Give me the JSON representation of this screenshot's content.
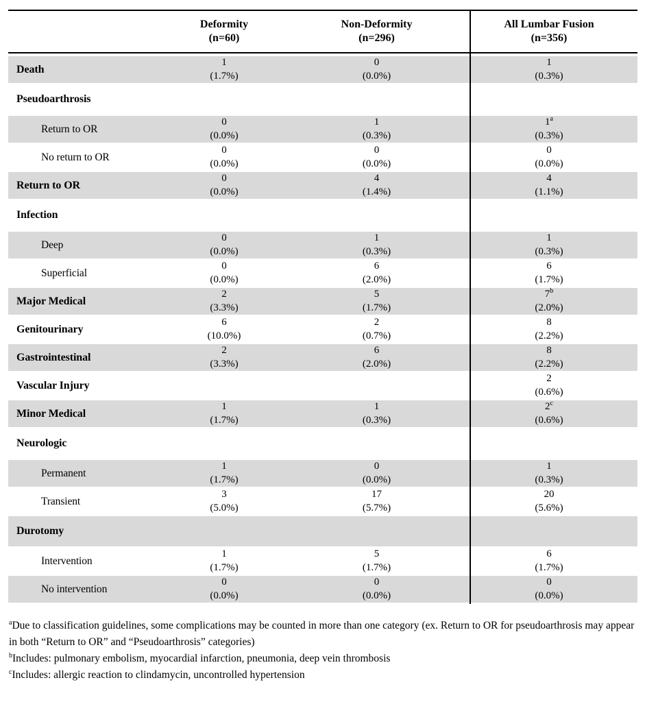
{
  "colors": {
    "shading": "#d9d9d9",
    "border": "#000000",
    "background": "#ffffff"
  },
  "table": {
    "columns": [
      {
        "label": "Deformity",
        "n": "(n=60)"
      },
      {
        "label": "Non-Deformity",
        "n": "(n=296)"
      },
      {
        "label": "All Lumbar Fusion",
        "n": "(n=356)"
      }
    ],
    "rows": [
      {
        "label": "Death",
        "style": "main",
        "shaded": true,
        "cells": [
          {
            "count": "1",
            "pct": "(1.7%)"
          },
          {
            "count": "0",
            "pct": "(0.0%)"
          },
          {
            "count": "1",
            "pct": "(0.3%)"
          }
        ]
      },
      {
        "label": "Pseudoarthrosis",
        "style": "section",
        "shaded": false,
        "cells": [
          null,
          null,
          null
        ]
      },
      {
        "label": "Return to OR",
        "style": "sub",
        "shaded": true,
        "cells": [
          {
            "count": "0",
            "pct": "(0.0%)"
          },
          {
            "count": "1",
            "pct": "(0.3%)"
          },
          {
            "count": "1",
            "sup": "a",
            "pct": "(0.3%)"
          }
        ]
      },
      {
        "label": "No return to OR",
        "style": "sub",
        "shaded": false,
        "cells": [
          {
            "count": "0",
            "pct": "(0.0%)"
          },
          {
            "count": "0",
            "pct": "(0.0%)"
          },
          {
            "count": "0",
            "pct": "(0.0%)"
          }
        ]
      },
      {
        "label": "Return to OR",
        "style": "main",
        "shaded": true,
        "cells": [
          {
            "count": "0",
            "pct": "(0.0%)"
          },
          {
            "count": "4",
            "pct": "(1.4%)"
          },
          {
            "count": "4",
            "pct": "(1.1%)"
          }
        ]
      },
      {
        "label": "Infection",
        "style": "section",
        "shaded": false,
        "cells": [
          null,
          null,
          null
        ]
      },
      {
        "label": "Deep",
        "style": "sub",
        "shaded": true,
        "cells": [
          {
            "count": "0",
            "pct": "(0.0%)"
          },
          {
            "count": "1",
            "pct": "(0.3%)"
          },
          {
            "count": "1",
            "pct": "(0.3%)"
          }
        ]
      },
      {
        "label": "Superficial",
        "style": "sub",
        "shaded": false,
        "cells": [
          {
            "count": "0",
            "pct": "(0.0%)"
          },
          {
            "count": "6",
            "pct": "(2.0%)"
          },
          {
            "count": "6",
            "pct": "(1.7%)"
          }
        ]
      },
      {
        "label": "Major Medical",
        "style": "main",
        "shaded": true,
        "cells": [
          {
            "count": "2",
            "pct": "(3.3%)"
          },
          {
            "count": "5",
            "pct": "(1.7%)"
          },
          {
            "count": "7",
            "sup": "b",
            "pct": "(2.0%)"
          }
        ]
      },
      {
        "label": "Genitourinary",
        "style": "main",
        "shaded": false,
        "cells": [
          {
            "count": "6",
            "pct": "(10.0%)"
          },
          {
            "count": "2",
            "pct": "(0.7%)"
          },
          {
            "count": "8",
            "pct": "(2.2%)"
          }
        ]
      },
      {
        "label": "Gastrointestinal",
        "style": "main",
        "shaded": true,
        "cells": [
          {
            "count": "2",
            "pct": "(3.3%)"
          },
          {
            "count": "6",
            "pct": "(2.0%)"
          },
          {
            "count": "8",
            "pct": "(2.2%)"
          }
        ]
      },
      {
        "label": "Vascular Injury",
        "style": "main",
        "shaded": false,
        "cells": [
          null,
          null,
          {
            "count": "2",
            "pct": "(0.6%)"
          }
        ]
      },
      {
        "label": "Minor Medical",
        "style": "main",
        "shaded": true,
        "cells": [
          {
            "count": "1",
            "pct": "(1.7%)"
          },
          {
            "count": "1",
            "pct": "(0.3%)"
          },
          {
            "count": "2",
            "sup": "c",
            "pct": "(0.6%)"
          }
        ]
      },
      {
        "label": "Neurologic",
        "style": "section",
        "shaded": false,
        "cells": [
          null,
          null,
          null
        ]
      },
      {
        "label": "Permanent",
        "style": "sub",
        "shaded": true,
        "cells": [
          {
            "count": "1",
            "pct": "(1.7%)"
          },
          {
            "count": "0",
            "pct": "(0.0%)"
          },
          {
            "count": "1",
            "pct": "(0.3%)"
          }
        ]
      },
      {
        "label": "Transient",
        "style": "sub",
        "shaded": false,
        "cells": [
          {
            "count": "3",
            "pct": "(5.0%)"
          },
          {
            "count": "17",
            "pct": "(5.7%)"
          },
          {
            "count": "20",
            "pct": "(5.6%)"
          }
        ]
      },
      {
        "label": "Durotomy",
        "style": "section",
        "shaded": true,
        "cells": [
          null,
          null,
          null
        ]
      },
      {
        "label": "Intervention",
        "style": "sub",
        "shaded": false,
        "cells": [
          {
            "count": "1",
            "pct": "(1.7%)"
          },
          {
            "count": "5",
            "pct": "(1.7%)"
          },
          {
            "count": "6",
            "pct": "(1.7%)"
          }
        ]
      },
      {
        "label": "No intervention",
        "style": "sub",
        "shaded": true,
        "cells": [
          {
            "count": "0",
            "pct": "(0.0%)"
          },
          {
            "count": "0",
            "pct": "(0.0%)"
          },
          {
            "count": "0",
            "pct": "(0.0%)"
          }
        ]
      }
    ]
  },
  "footnotes": [
    {
      "sup": "a",
      "text": "Due to classification guidelines, some complications may be counted in more than one category (ex. Return to OR for pseudoarthrosis may appear in both “Return to OR” and “Pseudoarthrosis” categories)"
    },
    {
      "sup": "b",
      "text": "Includes: pulmonary embolism, myocardial infarction, pneumonia, deep vein thrombosis"
    },
    {
      "sup": "c",
      "text": "Includes: allergic reaction to clindamycin, uncontrolled hypertension"
    }
  ]
}
